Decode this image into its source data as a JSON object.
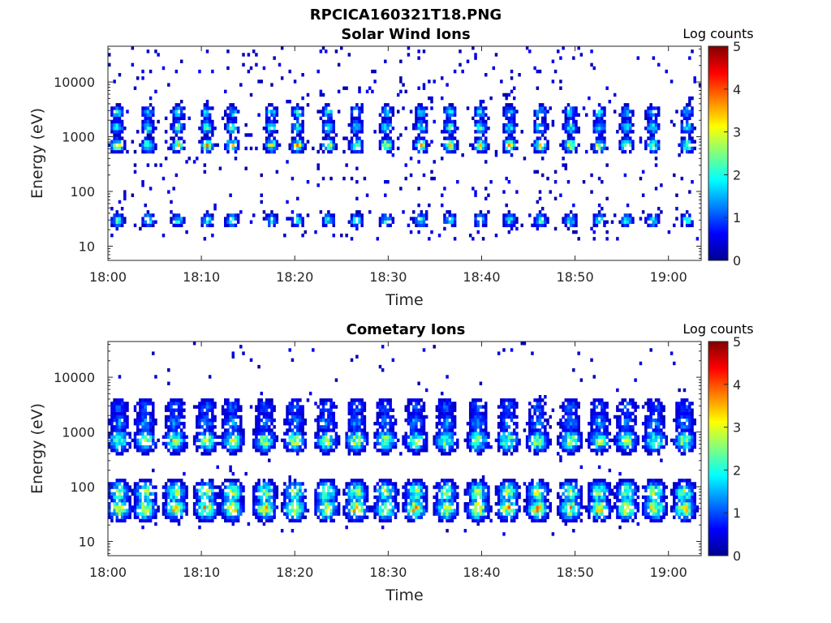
{
  "figure": {
    "title": "RPCICA160321T18.PNG"
  },
  "chart_data": [
    {
      "type": "heatmap",
      "title": "Solar Wind Ions",
      "xlabel": "Time",
      "ylabel": "Energy (eV)",
      "x_ticks": [
        "18:00",
        "18:10",
        "18:20",
        "18:30",
        "18:40",
        "18:50",
        "19:00"
      ],
      "x_tick_minutes": [
        0,
        10,
        20,
        30,
        40,
        50,
        60
      ],
      "xlim_minutes": [
        0,
        63.5
      ],
      "y_ticks": [
        10,
        100,
        1000,
        10000
      ],
      "y_tick_labels": [
        "10",
        "100",
        "1000",
        "10000"
      ],
      "ylim": [
        5.5,
        45000
      ],
      "yscale": "log",
      "colorbar": {
        "label": "Log counts",
        "range": [
          0,
          5
        ],
        "ticks": [
          "0",
          "1",
          "2",
          "3",
          "4",
          "5"
        ]
      },
      "features": {
        "pulse_times_minutes": [
          1.0,
          4.3,
          7.5,
          10.6,
          13.3,
          17.5,
          20.3,
          23.6,
          26.6,
          29.8,
          33.5,
          36.6,
          39.9,
          43.0,
          46.3,
          49.5,
          52.6,
          55.5,
          58.3,
          62.0
        ],
        "bands": [
          {
            "energy_eV": 2800,
            "peak_log_counts": 2.0
          },
          {
            "energy_eV": 1500,
            "peak_log_counts": 2.4
          },
          {
            "energy_eV": 700,
            "peak_log_counts": 3.4
          },
          {
            "energy_eV": 30,
            "peak_log_counts": 2.3
          }
        ]
      }
    },
    {
      "type": "heatmap",
      "title": "Cometary Ions",
      "xlabel": "Time",
      "ylabel": "Energy (eV)",
      "x_ticks": [
        "18:00",
        "18:10",
        "18:20",
        "18:30",
        "18:40",
        "18:50",
        "19:00"
      ],
      "x_tick_minutes": [
        0,
        10,
        20,
        30,
        40,
        50,
        60
      ],
      "xlim_minutes": [
        0,
        63.5
      ],
      "y_ticks": [
        10,
        100,
        1000,
        10000
      ],
      "y_tick_labels": [
        "10",
        "100",
        "1000",
        "10000"
      ],
      "ylim": [
        5.5,
        45000
      ],
      "yscale": "log",
      "colorbar": {
        "label": "Log counts",
        "range": [
          0,
          5
        ],
        "ticks": [
          "0",
          "1",
          "2",
          "3",
          "4",
          "5"
        ]
      },
      "features": {
        "pulse_times_minutes": [
          1.2,
          4.0,
          7.2,
          10.5,
          13.3,
          16.8,
          20.0,
          23.4,
          26.6,
          29.7,
          32.9,
          36.2,
          39.6,
          42.8,
          46.0,
          49.5,
          52.6,
          55.5,
          58.5,
          61.7
        ],
        "bands": [
          {
            "energy_eV": 40,
            "peak_log_counts": 3.6
          },
          {
            "energy_eV": 80,
            "peak_log_counts": 3.0
          },
          {
            "energy_eV": 700,
            "peak_log_counts": 3.0
          },
          {
            "energy_eV": 1500,
            "peak_log_counts": 1.5
          },
          {
            "energy_eV": 2800,
            "peak_log_counts": 1.2
          }
        ]
      }
    }
  ]
}
